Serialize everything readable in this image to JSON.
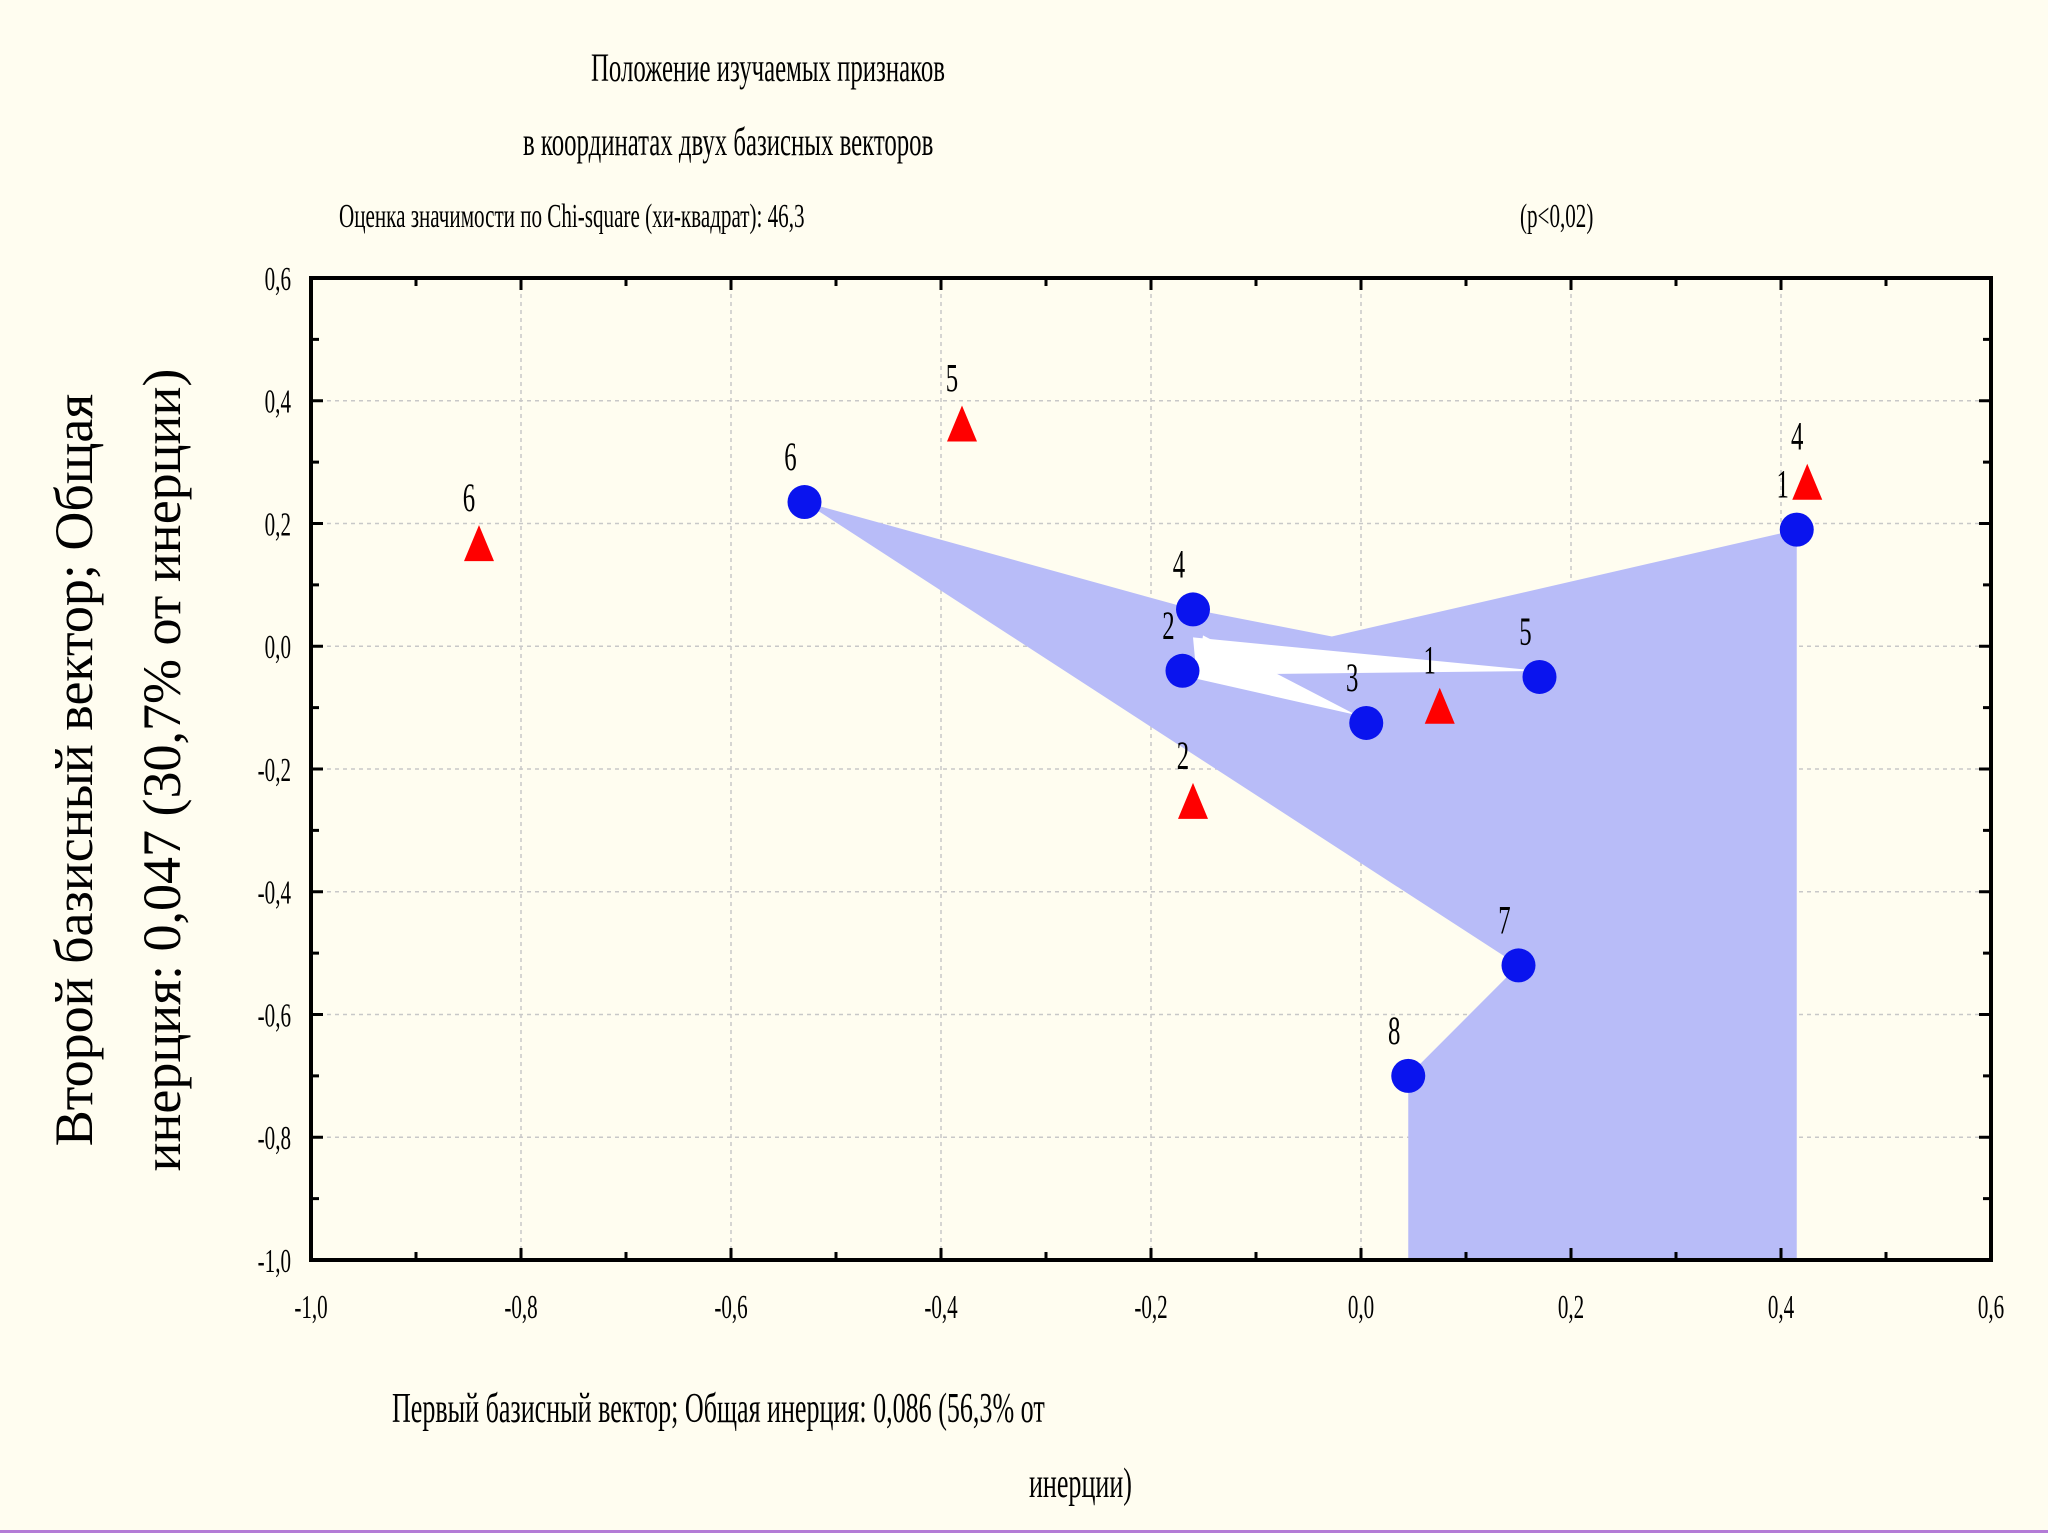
{
  "chart_data": {
    "type": "scatter",
    "title": "Положение изучаемых признаков",
    "title_line2": "в координатах двух базисных векторов",
    "subtitle": "Оценка значимости по Chi-square (хи-квадрат): 46,3",
    "p_value": "(p<0,02)",
    "xlabel_line1": "Первый базисный вектор; Общая инерция: 0,086 (56,3% от",
    "xlabel_line2": "инерции)",
    "ylabel": "Второй базисный вектор; Общая инерция: 0,047 (30,7% от инерции)",
    "xlim": [
      -1.0,
      0.6
    ],
    "ylim": [
      -1.0,
      0.6
    ],
    "xticks": [
      "-1,0",
      "-0,8",
      "-0,6",
      "-0,4",
      "-0,2",
      "0,0",
      "0,2",
      "0,4",
      "0,6"
    ],
    "yticks": [
      "0,6",
      "0,4",
      "0,2",
      "0,0",
      "-0,2",
      "-0,4",
      "-0,6",
      "-0,8",
      "-1,0"
    ],
    "grid": true,
    "series": [
      {
        "marker": "circle",
        "color": "#0a14ee",
        "points": [
          {
            "label": "1",
            "x": 0.415,
            "y": 0.19
          },
          {
            "label": "2",
            "x": -0.17,
            "y": -0.04
          },
          {
            "label": "3",
            "x": 0.005,
            "y": -0.125
          },
          {
            "label": "4",
            "x": -0.16,
            "y": 0.06
          },
          {
            "label": "5",
            "x": 0.17,
            "y": -0.05
          },
          {
            "label": "6",
            "x": -0.53,
            "y": 0.235
          },
          {
            "label": "7",
            "x": 0.15,
            "y": -0.52
          },
          {
            "label": "8",
            "x": 0.045,
            "y": -0.7
          }
        ]
      },
      {
        "marker": "triangle",
        "color": "#ff0000",
        "points": [
          {
            "label": "1",
            "x": 0.075,
            "y": -0.11
          },
          {
            "label": "2",
            "x": -0.16,
            "y": -0.265
          },
          {
            "label": "4",
            "x": 0.425,
            "y": 0.255
          },
          {
            "label": "5",
            "x": -0.38,
            "y": 0.35
          },
          {
            "label": "6",
            "x": -0.84,
            "y": 0.155
          }
        ]
      }
    ],
    "area_color": "#b8bcf8"
  }
}
